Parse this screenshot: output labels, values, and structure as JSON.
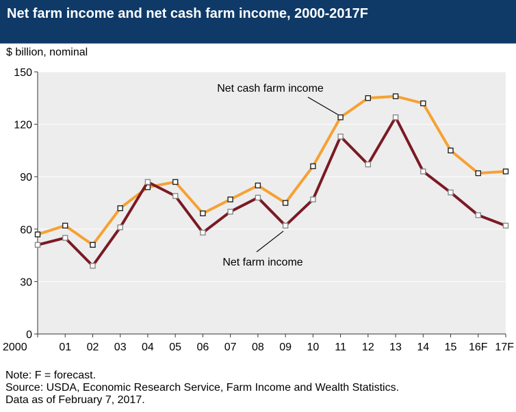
{
  "header": {
    "title": "Net farm income and net cash farm income, 2000-2017F"
  },
  "units_label": "$ billion, nominal",
  "footnotes": {
    "note": "Note: F = forecast.",
    "source": "Source: USDA, Economic Research Service, Farm Income and Wealth Statistics.",
    "date": "Data as of February 7, 2017."
  },
  "colors": {
    "header_bg": "#0f3a68",
    "plot_bg": "#ededed",
    "net_cash_farm_income": "#f6a133",
    "net_farm_income": "#7a1a24"
  },
  "chart_data": {
    "type": "line",
    "title": "Net farm income and net cash farm income, 2000-2017F",
    "ylabel": "$ billion, nominal",
    "xlabel": "",
    "ylim": [
      0,
      150
    ],
    "yticks": [
      0,
      30,
      60,
      90,
      120,
      150
    ],
    "grid": true,
    "categories": [
      "2000",
      "01",
      "02",
      "03",
      "04",
      "05",
      "06",
      "07",
      "08",
      "09",
      "10",
      "11",
      "12",
      "13",
      "14",
      "15",
      "16F",
      "17F"
    ],
    "series": [
      {
        "name": "Net cash farm income",
        "color": "#f6a133",
        "values": [
          57,
          62,
          51,
          72,
          84,
          87,
          69,
          77,
          85,
          75,
          96,
          124,
          135,
          136,
          132,
          105,
          92,
          93
        ]
      },
      {
        "name": "Net farm income",
        "color": "#7a1a24",
        "values": [
          51,
          55,
          39,
          61,
          87,
          79,
          58,
          70,
          78,
          62,
          77,
          113,
          97,
          124,
          93,
          81,
          68,
          62
        ]
      }
    ],
    "annotations": [
      {
        "text": "Net cash farm income",
        "series": 0
      },
      {
        "text": "Net farm income",
        "series": 1
      }
    ]
  }
}
